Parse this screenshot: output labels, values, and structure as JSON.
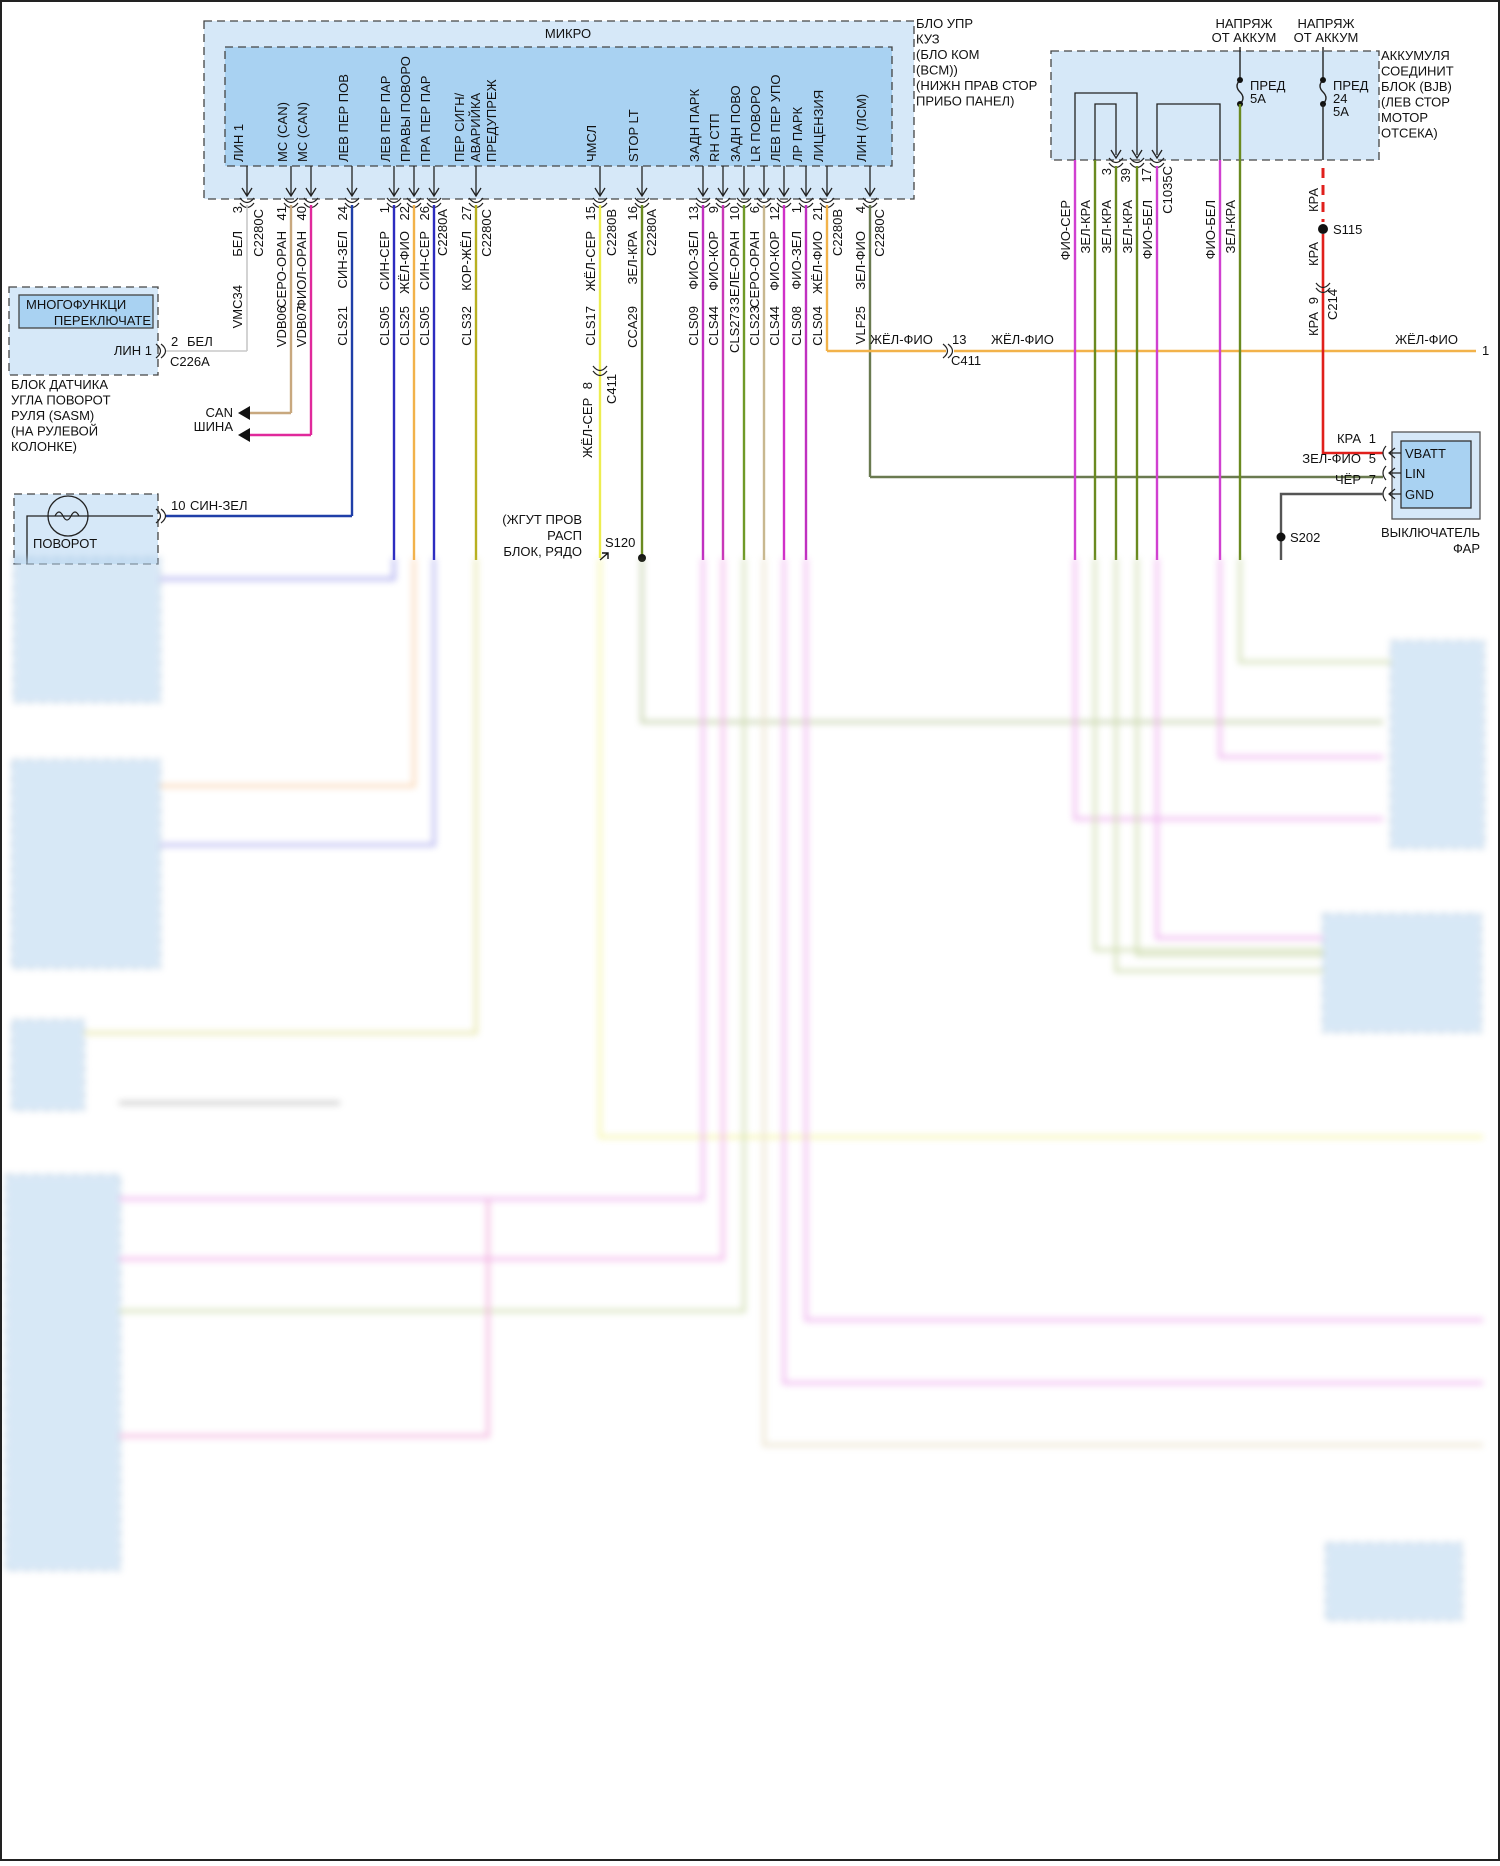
{
  "bcm": {
    "inner_title": "МИКРО",
    "caption": [
      "БЛО УПР",
      "КУЗ",
      "(БЛО КОМ",
      "(BCM))",
      "(НИЖН ПРАВ СТОР",
      "ПРИБО ПАНЕЛ)"
    ],
    "pins": [
      {
        "signal": [
          "ЛИН 1"
        ],
        "pin": "3",
        "color": "БЕЛ",
        "circuit": "VMC34",
        "wire_hex": "#c8c8c8"
      },
      {
        "signal": [
          "МС (CAN)"
        ],
        "pin": "41",
        "color": "СЕРО-ОРАН",
        "circuit": "VDB06",
        "wire_hex": "#c8a87e"
      },
      {
        "signal": [
          "МС (CAN)"
        ],
        "pin": "40",
        "color": "ФИОЛ-ОРАН",
        "circuit": "VDB07",
        "wire_hex": "#e0299b"
      },
      {
        "signal": [
          "ЛЕВ ПЕР ПОВ"
        ],
        "pin": "24",
        "color": "СИН-ЗЕЛ",
        "circuit": "CLS21",
        "wire_hex": "#1f3fa8"
      },
      {
        "signal": [
          "ЛЕВ ПЕР ПАР"
        ],
        "pin": "1",
        "color": "СИН-СЕР",
        "circuit": "CLS05",
        "wire_hex": "#2c2cc0"
      },
      {
        "signal": [
          "ПРАВЫ ПОВОРО"
        ],
        "pin": "22",
        "color": "ЖЁЛ-ФИО",
        "circuit": "CLS25",
        "wire_hex": "#f2b24a"
      },
      {
        "signal": [
          "ПРА ПЕР ПАР"
        ],
        "pin": "26",
        "color": "СИН-СЕР",
        "circuit": "CLS05",
        "wire_hex": "#2c2cc0"
      },
      {
        "signal": [
          "ПЕР СИГН/",
          "АВАРИЙКА",
          "ПРЕДУПРЕЖ"
        ],
        "pin": "27",
        "color": "КОР-ЖЁЛ",
        "circuit": "CLS32",
        "wire_hex": "#b8b020"
      },
      {
        "signal": [
          "ЧМСЛ"
        ],
        "pin": "15",
        "color": "ЖЁЛ-СЕР",
        "circuit": "CLS17",
        "wire_hex": "#eded50"
      },
      {
        "signal": [
          "STOP LT"
        ],
        "pin": "16",
        "color": "ЗЕЛ-КРА",
        "circuit": "CCA29",
        "wire_hex": "#6a8a20"
      },
      {
        "signal": [
          "ЗАДН ПАРК"
        ],
        "pin": "13",
        "color": "ФИО-ЗЕЛ",
        "circuit": "CLS09",
        "wire_hex": "#c030c0"
      },
      {
        "signal": [
          "RH СТП"
        ],
        "pin": "9",
        "color": "ФИО-КОР",
        "circuit": "CLS44",
        "wire_hex": "#c838b8"
      },
      {
        "signal": [
          "ЗАДН ПОВО"
        ],
        "pin": "10",
        "color": "ЗЕЛЕ-ОРАН",
        "circuit": "CLS273",
        "wire_hex": "#6f9a28"
      },
      {
        "signal": [
          "LR ПОВОРО"
        ],
        "pin": "6",
        "color": "СЕРО-ОРАН",
        "circuit": "CLS23",
        "wire_hex": "#c8b890"
      },
      {
        "signal": [
          "ЛЕВ ПЕР УПО"
        ],
        "pin": "12",
        "color": "ФИО-КОР",
        "circuit": "CLS44",
        "wire_hex": "#d030c8"
      },
      {
        "signal": [
          "ЛР ПАРК"
        ],
        "pin": "1",
        "color": "ФИО-ЗЕЛ",
        "circuit": "CLS08",
        "wire_hex": "#c030c0"
      },
      {
        "signal": [
          "ЛИЦЕНЗИЯ"
        ],
        "pin": "21",
        "color": "ЖЁЛ-ФИО",
        "circuit": "CLS04",
        "wire_hex": "#f2b24a"
      },
      {
        "signal": [
          "ЛИН (ЛСМ)"
        ],
        "pin": "4",
        "color": "ЗЕЛ-ФИО",
        "circuit": "VLF25",
        "wire_hex": "#6a7a50"
      }
    ],
    "connectors": [
      "C2280C",
      "C2280A",
      "C2280C",
      "C2280B",
      "C2280A",
      "C2280B",
      "C2280C"
    ]
  },
  "sasm": {
    "inner_title": [
      "МНОГОФУНКЦИ",
      "ПЕРЕКЛЮЧАТЕ"
    ],
    "pin_label": "ЛИН 1",
    "pin": "2",
    "wire": "БЕЛ",
    "connector": "C226A",
    "caption": [
      "БЛОК ДАТЧИКА",
      "УГЛА ПОВОРОТ",
      "РУЛЯ (SASM)",
      "(НА РУЛЕВОЙ",
      "КОЛОНКЕ)"
    ]
  },
  "can_bus": [
    "CAN",
    "ШИНА"
  ],
  "turn_switch": {
    "label": "ПОВОРОТ",
    "pin": "10",
    "wire": "СИН-ЗЕЛ"
  },
  "chmsl_branch": {
    "wire": "ЖЁЛ-СЕР",
    "pin": "8",
    "connector": "C411",
    "splice": "S120",
    "note": [
      "(ЖГУТ ПРОВ",
      "РАСП",
      "БЛОК, РЯДО"
    ]
  },
  "license_line": {
    "wire_left": "ЖЁЛ-ФИО",
    "pin": "13",
    "connector": "C411",
    "wire_mid": "ЖЁЛ-ФИО",
    "wire_right": "ЖЁЛ-ФИО",
    "ref": "1"
  },
  "bjb": {
    "supply": [
      "НАПРЯЖ",
      "ОТ АККУМ"
    ],
    "fuse1": [
      "ПРЕД",
      "5A"
    ],
    "fuse2": [
      "ПРЕД",
      "24",
      "5A"
    ],
    "caption": [
      "АККУМУЛЯ",
      "СОЕДИНИТ",
      "БЛОК (BJB)",
      "(ЛЕВ СТОР",
      "МОТОР",
      "ОТСЕКА)"
    ],
    "wires": [
      "ФИО-СЕР",
      "ЗЕЛ-КРА",
      "ЗЕЛ-КРА",
      "ЗЕЛ-КРА",
      "ФИО-БЕЛ",
      "ФИО-БЕЛ",
      "ЗЕЛ-КРА"
    ],
    "pins": [
      "3",
      "39",
      "17"
    ],
    "connector": "C1035C",
    "feed": {
      "wire": "КРА",
      "splice": "S115",
      "pin": "9",
      "connector": "C214"
    }
  },
  "headlamp_switch": {
    "caption": [
      "ВЫКЛЮЧАТЕЛЬ",
      "ФАР"
    ],
    "terminals": [
      {
        "name": "VBATT",
        "pin": "1",
        "wire": "КРА"
      },
      {
        "name": "LIN",
        "pin": "5",
        "wire": "ЗЕЛ-ФИО"
      },
      {
        "name": "GND",
        "pin": "7",
        "wire": "ЧЁР"
      }
    ],
    "ground_splice": "S202"
  },
  "colors": {
    "module_fill": "#d6e8f8",
    "inner_fill": "#a9d2f2",
    "feed_red": "#e0201c",
    "ground": "#555555",
    "bjb_pink": "#d040d0",
    "bjb_olive": "#6a8a20"
  }
}
